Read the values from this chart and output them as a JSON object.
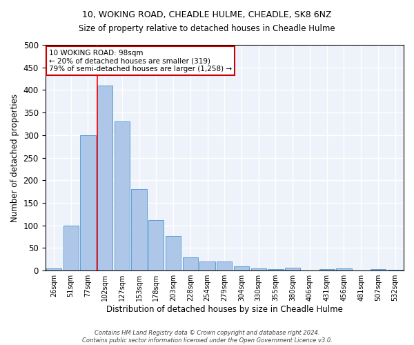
{
  "title": "10, WOKING ROAD, CHEADLE HULME, CHEADLE, SK8 6NZ",
  "subtitle": "Size of property relative to detached houses in Cheadle Hulme",
  "xlabel": "Distribution of detached houses by size in Cheadle Hulme",
  "ylabel": "Number of detached properties",
  "bin_labels": [
    "26sqm",
    "51sqm",
    "77sqm",
    "102sqm",
    "127sqm",
    "153sqm",
    "178sqm",
    "203sqm",
    "228sqm",
    "254sqm",
    "279sqm",
    "304sqm",
    "330sqm",
    "355sqm",
    "380sqm",
    "406sqm",
    "431sqm",
    "456sqm",
    "481sqm",
    "507sqm",
    "532sqm"
  ],
  "bar_values": [
    5,
    100,
    300,
    410,
    330,
    180,
    112,
    77,
    30,
    20,
    20,
    10,
    5,
    3,
    7,
    0,
    3,
    5,
    0,
    3,
    2
  ],
  "bar_color": "#aec6e8",
  "bar_edge_color": "#5a9fd4",
  "vline_color": "red",
  "vline_idx": 3,
  "ylim": [
    0,
    500
  ],
  "yticks": [
    0,
    50,
    100,
    150,
    200,
    250,
    300,
    350,
    400,
    450,
    500
  ],
  "annotation_title": "10 WOKING ROAD: 98sqm",
  "annotation_line1": "← 20% of detached houses are smaller (319)",
  "annotation_line2": "79% of semi-detached houses are larger (1,258) →",
  "annotation_box_color": "#ffffff",
  "annotation_box_edge": "#cc0000",
  "footer_line1": "Contains HM Land Registry data © Crown copyright and database right 2024.",
  "footer_line2": "Contains public sector information licensed under the Open Government Licence v3.0.",
  "background_color": "#eef2fa",
  "grid_color": "#ffffff",
  "fig_bg_color": "#ffffff"
}
